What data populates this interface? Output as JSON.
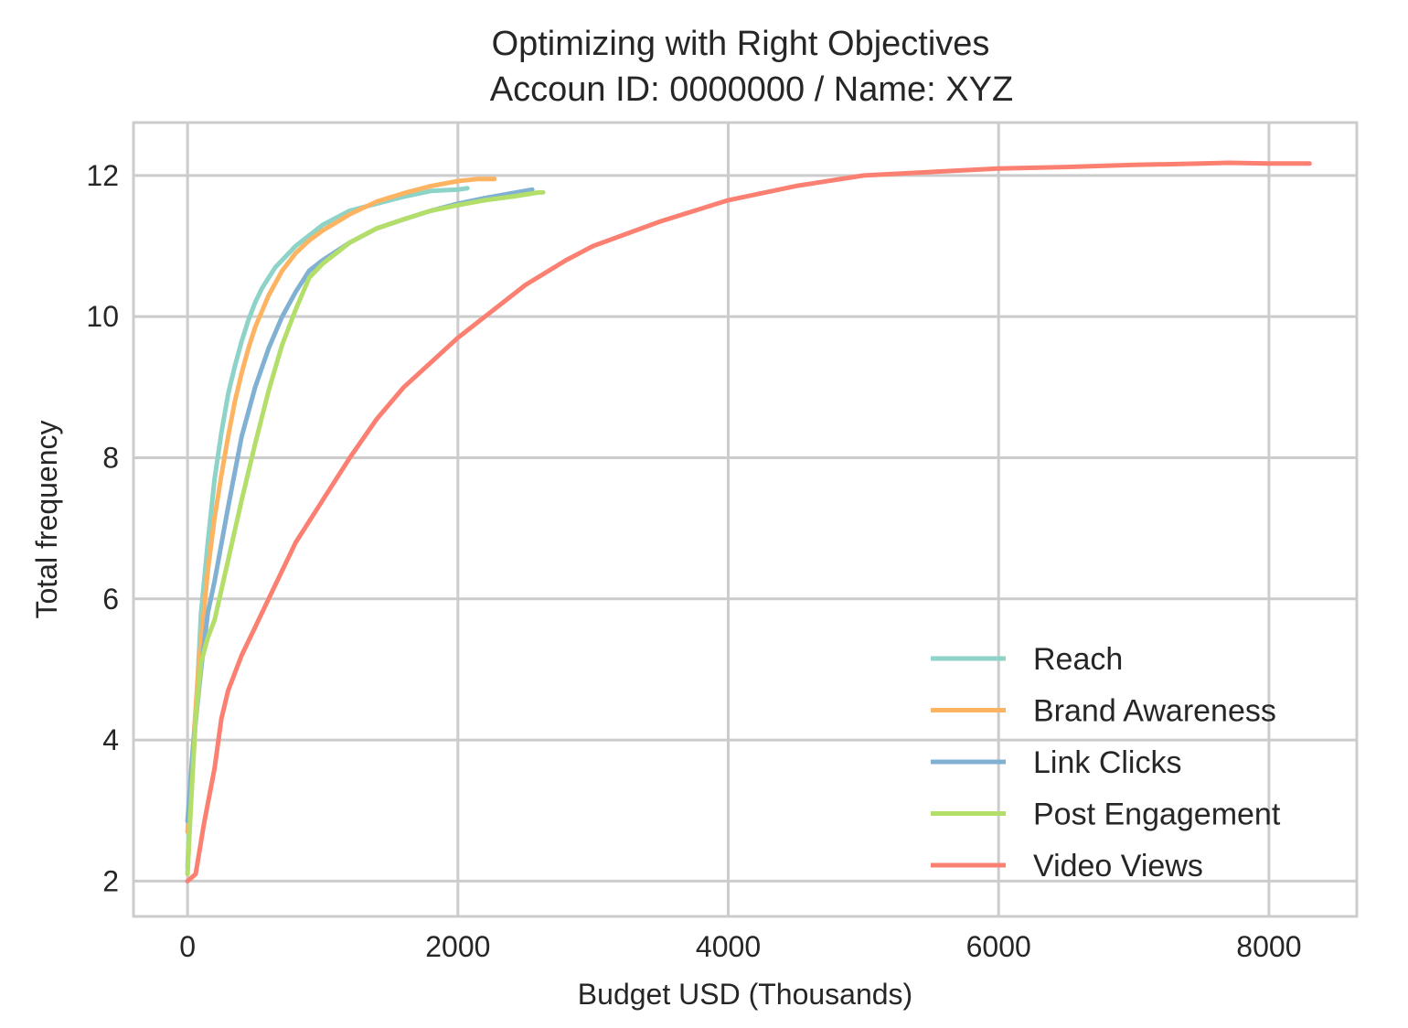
{
  "chart_data": {
    "type": "line",
    "title": "Optimizing with Right Objectives",
    "subtitle": "Accoun ID: 0000000 / Name: XYZ",
    "xlabel": "Budget USD (Thousands)",
    "ylabel": "Total frequency",
    "xlim": [
      -400,
      8650
    ],
    "ylim": [
      1.5,
      12.75
    ],
    "xticks": [
      0,
      2000,
      4000,
      6000,
      8000
    ],
    "yticks": [
      2,
      4,
      6,
      8,
      10,
      12
    ],
    "grid": true,
    "legend_position": "bottom-right",
    "series": [
      {
        "name": "Reach",
        "color": "#8dd3c7",
        "x": [
          0,
          20,
          60,
          100,
          150,
          200,
          250,
          300,
          350,
          400,
          450,
          500,
          550,
          600,
          650,
          700,
          800,
          900,
          1000,
          1200,
          1400,
          1600,
          1800,
          2000,
          2070
        ],
        "y": [
          2.2,
          3.1,
          4.3,
          5.8,
          6.8,
          7.7,
          8.35,
          8.9,
          9.3,
          9.65,
          9.95,
          10.2,
          10.4,
          10.55,
          10.7,
          10.8,
          11.0,
          11.15,
          11.3,
          11.5,
          11.6,
          11.7,
          11.78,
          11.8,
          11.82
        ]
      },
      {
        "name": "Brand Awareness",
        "color": "#fdb462",
        "x": [
          0,
          30,
          80,
          150,
          200,
          250,
          300,
          350,
          400,
          450,
          500,
          600,
          700,
          800,
          900,
          1000,
          1200,
          1400,
          1600,
          1800,
          2000,
          2150,
          2270
        ],
        "y": [
          2.7,
          3.6,
          5.0,
          6.4,
          7.15,
          7.75,
          8.3,
          8.8,
          9.2,
          9.55,
          9.85,
          10.3,
          10.65,
          10.9,
          11.08,
          11.22,
          11.45,
          11.63,
          11.75,
          11.85,
          11.92,
          11.95,
          11.95
        ]
      },
      {
        "name": "Link Clicks",
        "color": "#80b1d3",
        "x": [
          0,
          40,
          100,
          150,
          200,
          300,
          400,
          500,
          600,
          700,
          800,
          900,
          1000,
          1200,
          1400,
          1600,
          1800,
          2000,
          2200,
          2400,
          2550
        ],
        "y": [
          2.85,
          3.9,
          5.0,
          5.8,
          6.25,
          7.3,
          8.3,
          9.0,
          9.55,
          10.0,
          10.35,
          10.65,
          10.8,
          11.05,
          11.25,
          11.38,
          11.5,
          11.6,
          11.68,
          11.75,
          11.8
        ]
      },
      {
        "name": "Post Engagement",
        "color": "#b3de69",
        "x": [
          0,
          20,
          60,
          100,
          150,
          200,
          300,
          400,
          500,
          600,
          700,
          800,
          900,
          1000,
          1200,
          1400,
          1600,
          1800,
          2000,
          2200,
          2400,
          2600,
          2630
        ],
        "y": [
          2.1,
          2.9,
          4.3,
          5.1,
          5.45,
          5.7,
          6.55,
          7.4,
          8.2,
          8.95,
          9.6,
          10.1,
          10.55,
          10.75,
          11.05,
          11.25,
          11.38,
          11.5,
          11.58,
          11.65,
          11.7,
          11.76,
          11.76
        ]
      },
      {
        "name": "Video Views",
        "color": "#fb8072",
        "x": [
          0,
          60,
          120,
          200,
          250,
          300,
          400,
          500,
          600,
          800,
          1000,
          1200,
          1400,
          1600,
          1800,
          2000,
          2200,
          2500,
          2800,
          3000,
          3500,
          4000,
          4500,
          5000,
          5500,
          6000,
          6500,
          7000,
          7500,
          7700,
          8000,
          8300
        ],
        "y": [
          2.0,
          2.1,
          2.8,
          3.6,
          4.3,
          4.7,
          5.2,
          5.6,
          6.0,
          6.8,
          7.4,
          8.0,
          8.55,
          9.0,
          9.35,
          9.7,
          10.0,
          10.45,
          10.8,
          11.0,
          11.35,
          11.65,
          11.85,
          12.0,
          12.05,
          12.1,
          12.12,
          12.15,
          12.17,
          12.18,
          12.17,
          12.17
        ]
      }
    ]
  }
}
